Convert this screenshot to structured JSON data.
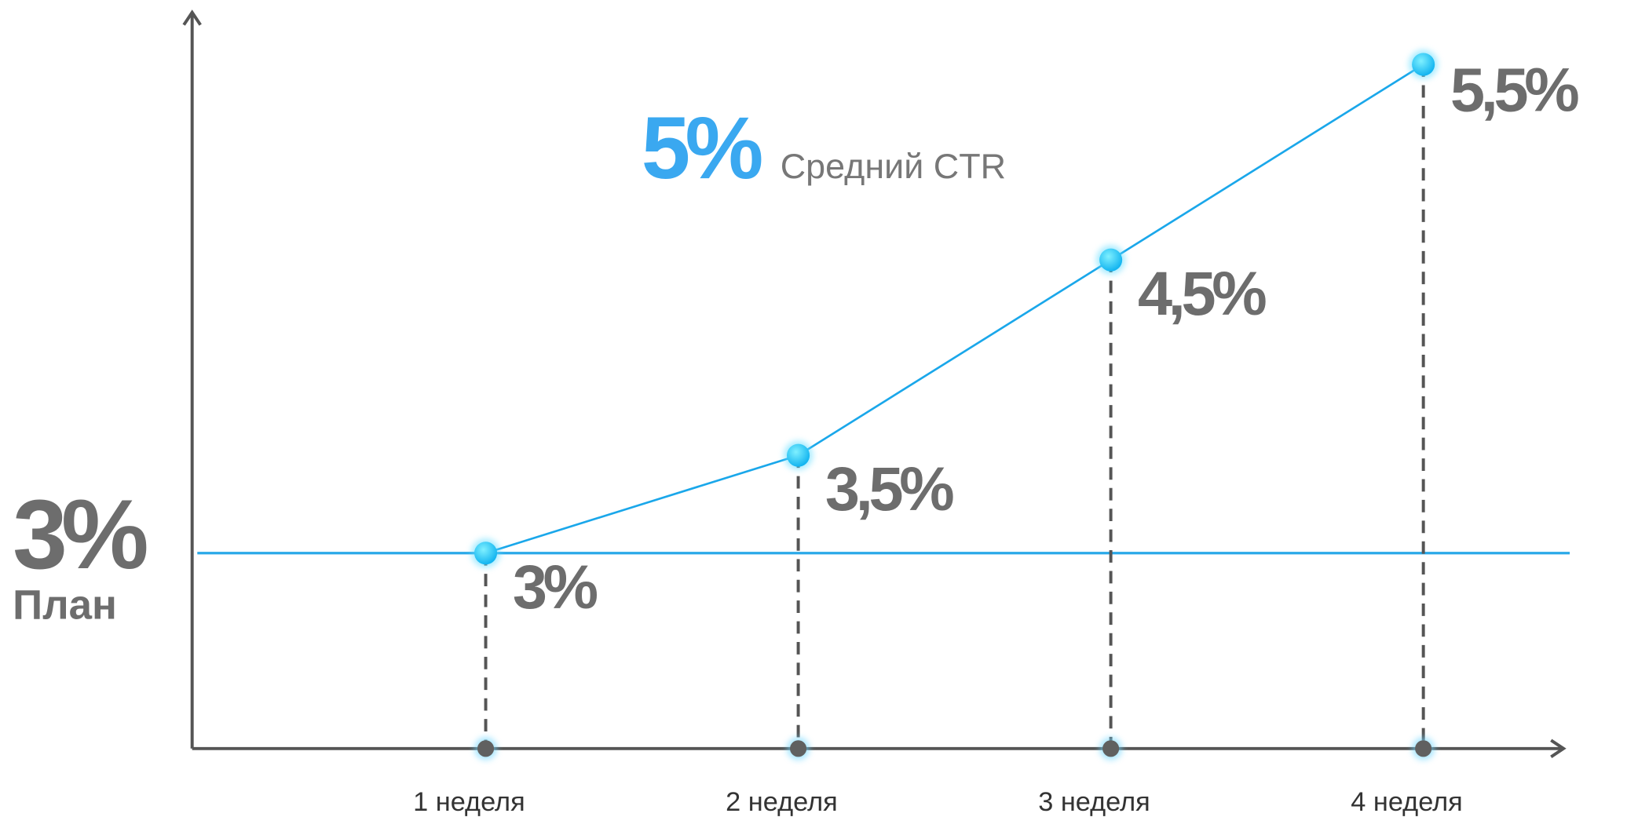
{
  "chart_data": {
    "type": "line",
    "categories": [
      "1 неделя",
      "2 неделя",
      "3 неделя",
      "4 неделя"
    ],
    "values": [
      3,
      3.5,
      4.5,
      5.5
    ],
    "value_labels": [
      "3%",
      "3,5%",
      "4,5%",
      "5,5%"
    ],
    "color": "#1aa7ea",
    "ylim": [
      2,
      5.75
    ],
    "plan": {
      "value": 3,
      "value_label": "3%",
      "label": "План",
      "color": "#2aa9e8"
    },
    "average": {
      "value_label": "5%",
      "label": "Средний CTR",
      "color": "#3aa8f0"
    }
  }
}
